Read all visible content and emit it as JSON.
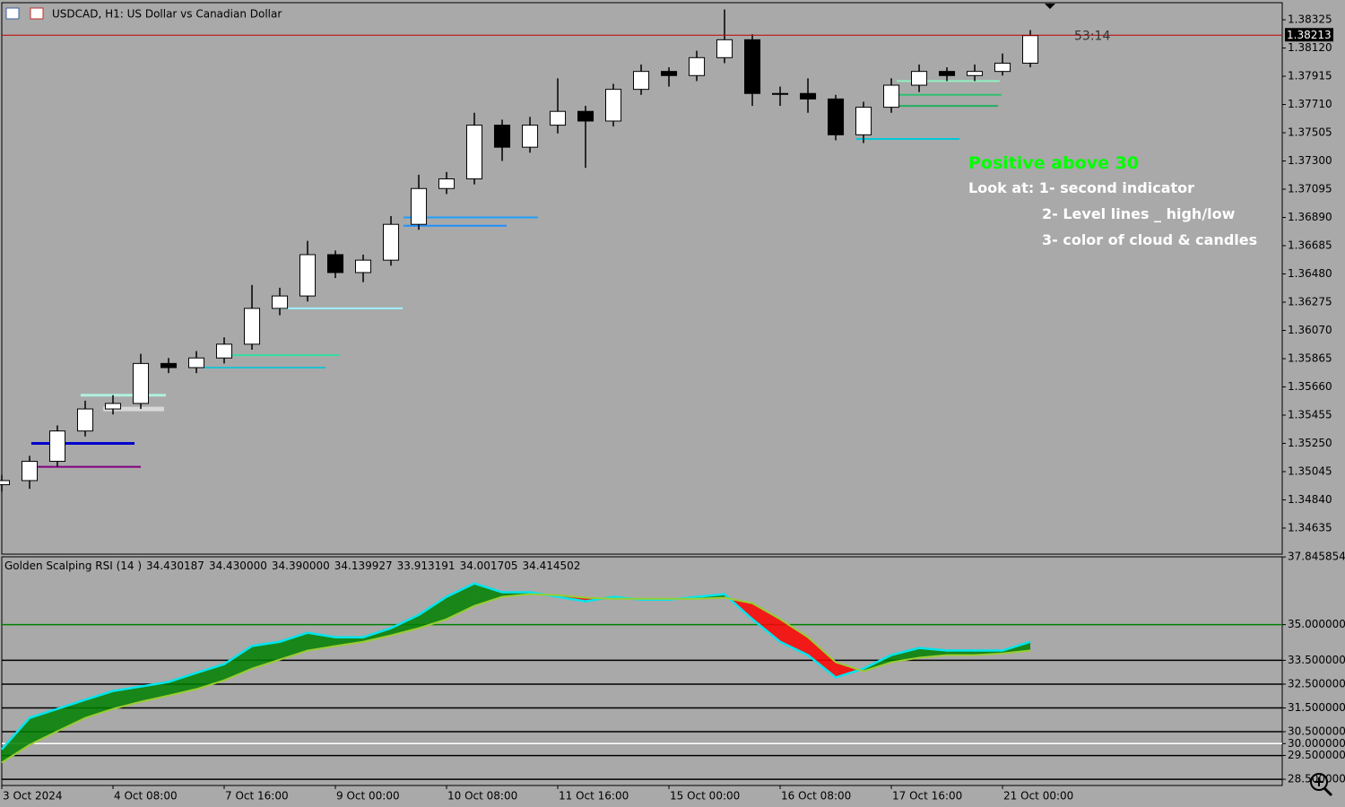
{
  "chart_data": [
    {
      "type": "candlestick",
      "title": "USDCAD, H1:  US Dollar vs Canadian Dollar",
      "color": "#000000",
      "x": [
        0,
        8,
        16,
        24,
        32,
        40,
        48,
        56,
        64,
        72,
        80,
        88,
        96,
        104,
        112,
        120,
        128,
        136,
        144,
        152,
        160,
        168,
        176,
        184,
        192,
        200,
        208,
        216,
        224,
        232,
        240,
        248,
        256,
        264,
        272,
        280,
        288,
        296
      ],
      "open": [
        1.3495,
        1.3498,
        1.3512,
        1.3534,
        1.355,
        1.3554,
        1.3583,
        1.358,
        1.3587,
        1.3597,
        1.3623,
        1.3632,
        1.3662,
        1.3649,
        1.3658,
        1.3684,
        1.371,
        1.3717,
        1.3756,
        1.374,
        1.3756,
        1.3766,
        1.3759,
        1.3782,
        1.3795,
        1.3792,
        1.3805,
        1.3818,
        1.3779,
        1.3779,
        1.3775,
        1.3749,
        1.3769,
        1.3785,
        1.3795,
        1.3792,
        1.3795,
        1.3801
      ],
      "high": [
        1.3502,
        1.3516,
        1.3538,
        1.3556,
        1.356,
        1.359,
        1.3587,
        1.3592,
        1.3602,
        1.364,
        1.3638,
        1.3672,
        1.3665,
        1.3662,
        1.369,
        1.372,
        1.3722,
        1.3765,
        1.376,
        1.3762,
        1.379,
        1.377,
        1.3786,
        1.38,
        1.3798,
        1.381,
        1.384,
        1.3822,
        1.3784,
        1.379,
        1.3778,
        1.3773,
        1.379,
        1.38,
        1.3798,
        1.38,
        1.3808,
        1.3825
      ],
      "low": [
        1.349,
        1.3492,
        1.3508,
        1.353,
        1.3546,
        1.355,
        1.3576,
        1.3576,
        1.3583,
        1.3593,
        1.3618,
        1.3628,
        1.3645,
        1.3642,
        1.3654,
        1.368,
        1.3706,
        1.3713,
        1.373,
        1.3736,
        1.375,
        1.3725,
        1.3755,
        1.3778,
        1.3784,
        1.3788,
        1.3801,
        1.377,
        1.377,
        1.3765,
        1.3745,
        1.3743,
        1.3765,
        1.378,
        1.3788,
        1.3788,
        1.3792,
        1.3798
      ],
      "close": [
        1.3498,
        1.3512,
        1.3534,
        1.355,
        1.3554,
        1.3583,
        1.358,
        1.3587,
        1.3597,
        1.3623,
        1.3632,
        1.3662,
        1.3649,
        1.3658,
        1.3684,
        1.371,
        1.3717,
        1.3756,
        1.374,
        1.3756,
        1.3766,
        1.3759,
        1.3782,
        1.3795,
        1.3792,
        1.3805,
        1.3818,
        1.3779,
        1.3779,
        1.3775,
        1.3749,
        1.3769,
        1.3785,
        1.3795,
        1.3792,
        1.3795,
        1.3801,
        1.3821
      ],
      "xlim": [
        0,
        368.5
      ],
      "ylim": [
        1.34446,
        1.38449
      ],
      "xticks": [
        {
          "value": 0,
          "label": "3 Oct 2024"
        },
        {
          "value": 32,
          "label": "4 Oct 08:00"
        },
        {
          "value": 64,
          "label": "7 Oct 16:00"
        },
        {
          "value": 96,
          "label": "9 Oct 00:00"
        },
        {
          "value": 128,
          "label": "10 Oct 08:00"
        },
        {
          "value": 160,
          "label": "11 Oct 16:00"
        },
        {
          "value": 192,
          "label": "15 Oct 00:00"
        },
        {
          "value": 224,
          "label": "16 Oct 08:00"
        },
        {
          "value": 256,
          "label": "17 Oct 16:00"
        },
        {
          "value": 288,
          "label": "21 Oct 00:00"
        }
      ],
      "yticks": [
        1.38325,
        {
          "value": 1.3812,
          "label": "1.38120"
        },
        1.37915,
        {
          "value": 1.3771,
          "label": "1.37710"
        },
        1.37505,
        {
          "value": 1.373,
          "label": "1.37300"
        },
        1.37095,
        {
          "value": 1.3689,
          "label": "1.36890"
        },
        1.36685,
        {
          "value": 1.3648,
          "label": "1.36480"
        },
        1.36275,
        {
          "value": 1.3607,
          "label": "1.36070"
        },
        1.35865,
        {
          "value": 1.3566,
          "label": "1.35660"
        },
        1.35455,
        {
          "value": 1.3525,
          "label": "1.35250"
        },
        1.35045,
        {
          "value": 1.3484,
          "label": "1.34840"
        },
        1.34635
      ],
      "current_price": 1.38213,
      "current_price_color": "#c00000",
      "countdown": "53:14",
      "level_lines": [
        {
          "price": 1.3525,
          "x": [
            8.5,
            38.2
          ],
          "color": "#0000cc",
          "width": 3
        },
        {
          "price": 1.3508,
          "x": [
            9.3,
            40.0
          ],
          "color": "#800080",
          "width": 2
        },
        {
          "price": 1.355,
          "x": [
            29.2,
            46.7
          ],
          "color": "#d8d8d8",
          "width": 5
        },
        {
          "price": 1.356,
          "x": [
            22.7,
            47.2
          ],
          "color": "#b0f0e0",
          "width": 3
        },
        {
          "price": 1.358,
          "x": [
            58.3,
            93.2
          ],
          "color": "#20c0d0",
          "width": 2
        },
        {
          "price": 1.3589,
          "x": [
            63.5,
            97.0
          ],
          "color": "#30e0a0",
          "width": 2
        },
        {
          "price": 1.3623,
          "x": [
            79.5,
            115.4
          ],
          "color": "#a0f0f8",
          "width": 2
        },
        {
          "price": 1.3683,
          "x": [
            115.6,
            145.3
          ],
          "color": "#1e90ff",
          "width": 2
        },
        {
          "price": 1.3689,
          "x": [
            115.6,
            154.3
          ],
          "color": "#1ea0ff",
          "width": 2
        },
        {
          "price": 1.3746,
          "x": [
            245.9,
            275.6
          ],
          "color": "#00c8d8",
          "width": 2
        },
        {
          "price": 1.377,
          "x": [
            257.0,
            286.7
          ],
          "color": "#20b060",
          "width": 2
        },
        {
          "price": 1.3778,
          "x": [
            257.5,
            287.7
          ],
          "color": "#30c070",
          "width": 2
        },
        {
          "price": 1.3788,
          "x": [
            257.5,
            287.2
          ],
          "color": "#90f0c0",
          "width": 2
        }
      ],
      "annotations": [
        {
          "text": "Positive above 30",
          "color": "#00ff00"
        },
        {
          "text": "Look at: 1- second indicator",
          "color": "#ffffff"
        },
        {
          "text": "2- Level lines _ high/low",
          "color": "#ffffff"
        },
        {
          "text": "3- color of cloud & candles",
          "color": "#ffffff"
        }
      ]
    },
    {
      "type": "line",
      "title": "Golden Scalping RSI (14 )",
      "readings": [
        "34.430187",
        "34.430000",
        "34.390000",
        "34.139927",
        "33.913191",
        "34.001705",
        "34.414502"
      ],
      "x": [
        0,
        8,
        16,
        24,
        32,
        40,
        48,
        56,
        64,
        72,
        80,
        88,
        96,
        104,
        112,
        120,
        128,
        136,
        144,
        152,
        160,
        168,
        176,
        184,
        192,
        200,
        208,
        216,
        224,
        232,
        240,
        248,
        256,
        264,
        272,
        280,
        288,
        296
      ],
      "series": [
        {
          "color": "#00e5ee",
          "values": [
            29.76,
            31.08,
            31.46,
            31.84,
            32.21,
            32.4,
            32.59,
            32.97,
            33.34,
            34.1,
            34.28,
            34.66,
            34.47,
            34.47,
            34.85,
            35.41,
            36.17,
            36.73,
            36.36,
            36.36,
            36.17,
            35.98,
            36.17,
            36.05,
            36.05,
            36.17,
            36.28,
            35.23,
            34.28,
            33.72,
            32.78,
            33.15,
            33.72,
            34.02,
            33.91,
            33.91,
            33.91,
            34.28
          ]
        },
        {
          "color": "#9acd32",
          "values": [
            29.2,
            29.95,
            30.52,
            31.08,
            31.46,
            31.76,
            32.02,
            32.29,
            32.66,
            33.15,
            33.53,
            33.91,
            34.1,
            34.28,
            34.55,
            34.85,
            35.23,
            35.79,
            36.17,
            36.28,
            36.24,
            36.13,
            36.09,
            36.09,
            36.09,
            36.09,
            36.13,
            35.9,
            35.23,
            34.47,
            33.42,
            33.04,
            33.42,
            33.61,
            33.72,
            33.72,
            33.79,
            33.91
          ]
        }
      ],
      "cloud_up_color": "#008000",
      "cloud_down_color": "#ff0000",
      "xlim": [
        0,
        368.5
      ],
      "ylim": [
        28.24,
        37.85
      ],
      "yticks": [
        {
          "value": 37.845854,
          "label": "37.845854"
        },
        {
          "value": 35,
          "label": "35.000000"
        },
        {
          "value": 33.5,
          "label": "33.500000"
        },
        {
          "value": 32.5,
          "label": "32.500000"
        },
        {
          "value": 31.5,
          "label": "31.500000"
        },
        {
          "value": 30.5,
          "label": "30.500000"
        },
        {
          "value": 30,
          "label": "30.000000"
        },
        {
          "value": 29.5,
          "label": "29.500000"
        },
        {
          "value": 28.5,
          "label": "28.500000"
        }
      ],
      "tick_line_colors": [
        null,
        "#008000",
        "#000000",
        "#000000",
        "#000000",
        "#000000",
        "#ffffff",
        "#000000",
        "#000000"
      ]
    }
  ]
}
